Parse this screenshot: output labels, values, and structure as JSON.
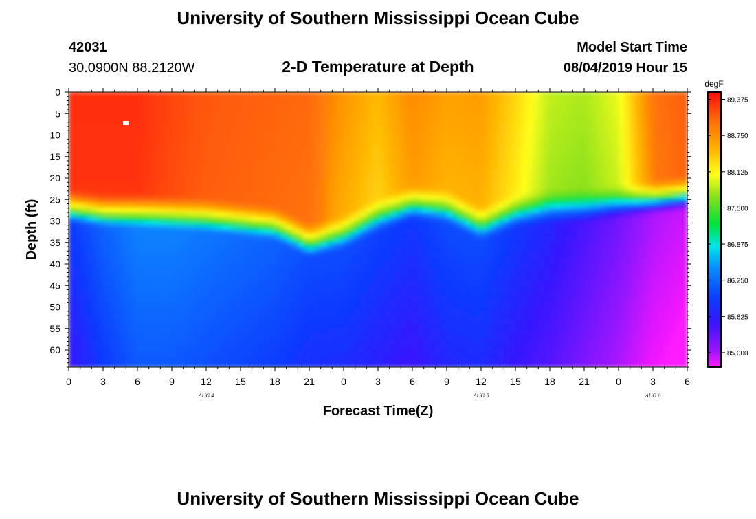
{
  "header": {
    "title_top": "University of Southern Mississippi Ocean Cube",
    "title_bottom": "University of Southern Mississippi Ocean Cube",
    "station_id": "42031",
    "coordinates": "30.0900N 88.2120W",
    "plot_title": "2-D Temperature at Depth",
    "model_start_label": "Model Start Time",
    "model_start_value": "08/04/2019 Hour 15"
  },
  "chart_data": {
    "type": "heatmap",
    "title": "2-D Temperature at Depth",
    "xlabel": "Forecast Time(Z)",
    "ylabel": "Depth (ft)",
    "x_hours": [
      0,
      3,
      6,
      9,
      12,
      15,
      18,
      21,
      24,
      27,
      30,
      33,
      36,
      39,
      42,
      45,
      48,
      51,
      54
    ],
    "x_tick_labels": [
      "0",
      "3",
      "6",
      "9",
      "12",
      "15",
      "18",
      "21",
      "0",
      "3",
      "6",
      "9",
      "12",
      "15",
      "18",
      "21",
      "0",
      "3",
      "6"
    ],
    "x_range": [
      0,
      54
    ],
    "day_labels": [
      {
        "label": "AUG 4",
        "hour": 12
      },
      {
        "label": "AUG 5",
        "hour": 36
      },
      {
        "label": "AUG 6",
        "hour": 51
      }
    ],
    "y_ticks": [
      0,
      5,
      10,
      15,
      20,
      25,
      30,
      35,
      40,
      45,
      50,
      55,
      60
    ],
    "y_tick_labels": [
      "0",
      "5",
      "10",
      "15",
      "20",
      "25",
      "30",
      "35",
      "40",
      "45",
      "50",
      "55",
      "60"
    ],
    "y_range": [
      0,
      64
    ],
    "colorbar": {
      "unit": "degF",
      "min": 84.75,
      "max": 89.5,
      "tick_values": [
        89.375,
        88.75,
        88.125,
        87.5,
        86.875,
        86.25,
        85.625,
        85.0
      ],
      "tick_labels": [
        "89.375",
        "88.750",
        "88.125",
        "87.500",
        "86.875",
        "86.250",
        "85.625",
        "85.000"
      ]
    },
    "thermocline": {
      "hours": [
        0,
        3,
        6,
        9,
        12,
        15,
        18,
        21,
        24,
        27,
        30,
        33,
        36,
        39,
        42,
        45,
        48,
        51,
        54
      ],
      "depth_ft": [
        27,
        28,
        28,
        28.5,
        29,
        30,
        31,
        35,
        33,
        29,
        26,
        27,
        31,
        28,
        27,
        27,
        26,
        25,
        24
      ],
      "surface_temp": [
        89.2,
        89.2,
        89.2,
        89.0,
        88.85,
        88.8,
        88.75,
        88.7,
        88.3,
        88.0,
        88.4,
        88.2,
        88.25,
        87.8,
        87.2,
        87.1,
        87.4,
        88.6,
        88.8
      ],
      "deep_temp": [
        85.6,
        85.8,
        85.95,
        85.95,
        85.9,
        85.85,
        85.8,
        85.7,
        85.7,
        85.65,
        85.6,
        85.7,
        85.7,
        85.6,
        85.5,
        85.35,
        85.2,
        85.0,
        84.9
      ]
    }
  }
}
